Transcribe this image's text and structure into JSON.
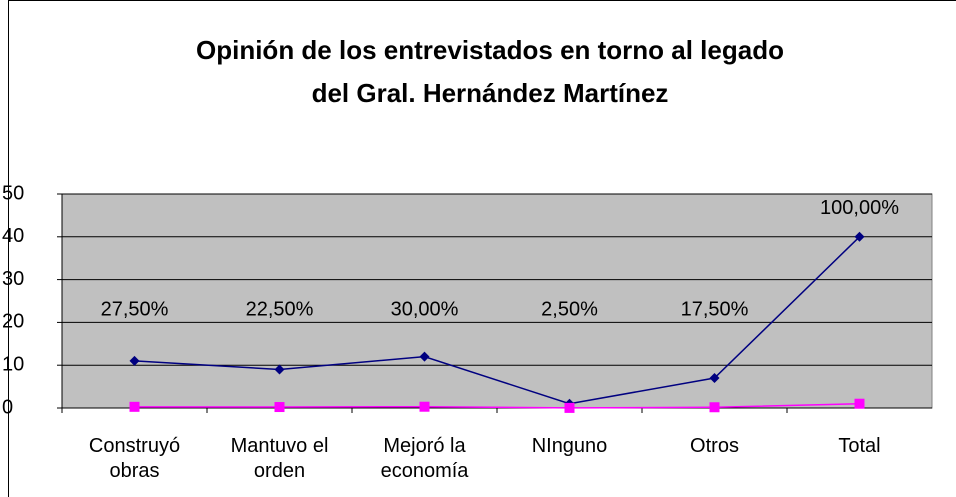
{
  "chart_data": {
    "type": "line",
    "title": [
      "Opinión de los entrevistados en torno al legado",
      "del Gral. Hernández Martínez"
    ],
    "categories": [
      "Construyó obras",
      "Mantuvo el orden",
      "Mejoró la economía",
      "NInguno",
      "Otros",
      "Total"
    ],
    "series": [
      {
        "color": "#000080",
        "marker": "diamond",
        "values": [
          11,
          9,
          12,
          1,
          7,
          40
        ]
      },
      {
        "color": "#ff00ff",
        "marker": "square",
        "values": [
          0.275,
          0.225,
          0.3,
          0.025,
          0.175,
          1
        ],
        "value_labels": [
          "27,50%",
          "22,50%",
          "30,00%",
          "2,50%",
          "17,50%",
          "100,00%"
        ]
      }
    ],
    "ylim": [
      0,
      50
    ],
    "yticks": [
      0,
      10,
      20,
      30,
      40,
      50
    ],
    "grid": true
  }
}
